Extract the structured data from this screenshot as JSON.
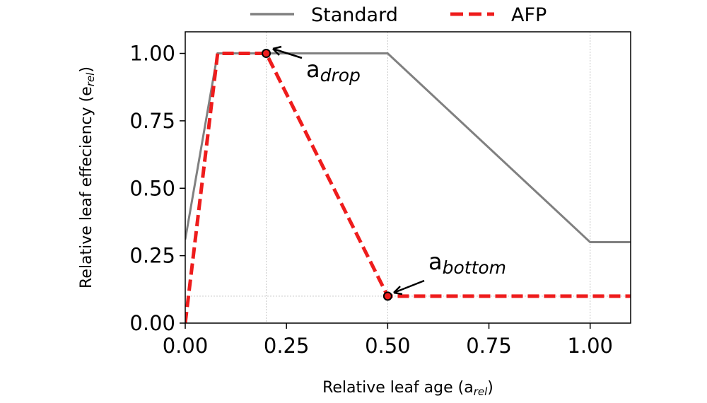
{
  "chart_data": {
    "type": "line",
    "title": "",
    "xlabel": {
      "main": "Relative leaf age (a",
      "sub": "rel",
      "close": ")"
    },
    "ylabel": {
      "main": "Relative leaf effeciency (e",
      "sub": "rel",
      "close": ")"
    },
    "xlim": [
      0.0,
      1.1
    ],
    "ylim": [
      0.0,
      1.08
    ],
    "xticks": [
      0.0,
      0.25,
      0.5,
      0.75,
      1.0
    ],
    "xtick_labels": [
      "0.00",
      "0.25",
      "0.50",
      "0.75",
      "1.00"
    ],
    "yticks": [
      0.0,
      0.25,
      0.5,
      0.75,
      1.0
    ],
    "ytick_labels": [
      "0.00",
      "0.25",
      "0.50",
      "0.75",
      "1.00"
    ],
    "legend_position": "top-outside",
    "series": [
      {
        "name": "Standard",
        "color": "#808080",
        "style": "solid",
        "x": [
          0.0,
          0.08,
          0.5,
          1.0,
          1.1
        ],
        "y": [
          0.31,
          1.0,
          1.0,
          0.3,
          0.3
        ]
      },
      {
        "name": "AFP",
        "color": "#ee1c1c",
        "style": "dashed",
        "x": [
          0.0,
          0.08,
          0.2,
          0.5,
          1.1
        ],
        "y": [
          0.0,
          1.0,
          1.0,
          0.1,
          0.1
        ]
      }
    ],
    "guide_lines": {
      "vertical_x": [
        0.2,
        0.5,
        1.0
      ],
      "horizontal_y": [
        0.1
      ]
    },
    "annotations": [
      {
        "name": "drop",
        "main": "a",
        "sub": "drop",
        "x": 0.2,
        "y": 1.0
      },
      {
        "name": "bottom",
        "main": "a",
        "sub": "bottom",
        "x": 0.5,
        "y": 0.1
      }
    ]
  }
}
